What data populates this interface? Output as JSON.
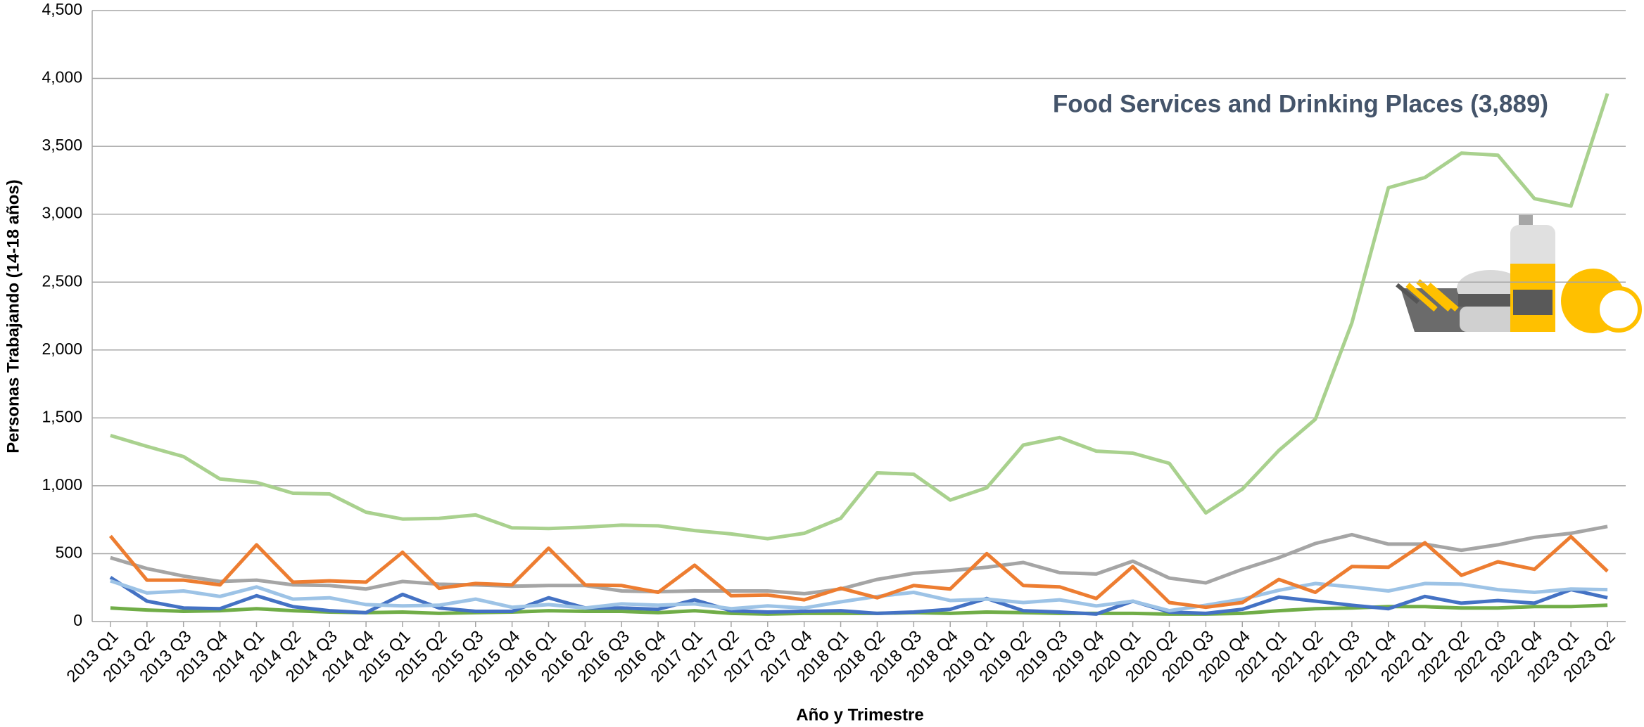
{
  "chart_data": {
    "type": "line",
    "annotation": "Food Services and Drinking Places (3,889)",
    "x_label": "Año y Trimestre",
    "y_label": "Personas Trabajando (14-18 años)",
    "categories": [
      "2013 Q1",
      "2013 Q2",
      "2013 Q3",
      "2013 Q4",
      "2014 Q1",
      "2014 Q2",
      "2014 Q3",
      "2014 Q4",
      "2015 Q1",
      "2015 Q2",
      "2015 Q3",
      "2015 Q4",
      "2016 Q1",
      "2016 Q2",
      "2016 Q3",
      "2016 Q4",
      "2017 Q1",
      "2017 Q2",
      "2017 Q3",
      "2017 Q4",
      "2018 Q1",
      "2018 Q2",
      "2018 Q3",
      "2018 Q4",
      "2019 Q1",
      "2019 Q2",
      "2019 Q3",
      "2019 Q4",
      "2020 Q1",
      "2020 Q2",
      "2020 Q3",
      "2020 Q4",
      "2021 Q1",
      "2021 Q2",
      "2021 Q3",
      "2021 Q4",
      "2022 Q1",
      "2022 Q2",
      "2022 Q3",
      "2022 Q4",
      "2023 Q1",
      "2023 Q2"
    ],
    "ylim": [
      0,
      4500
    ],
    "yticks": [
      0,
      500,
      {
        "value": 1000,
        "label": "1,000"
      },
      {
        "value": 1500,
        "label": "1,500"
      },
      {
        "value": 2000,
        "label": "2,000"
      },
      {
        "value": 2500,
        "label": "2,500"
      },
      {
        "value": 3000,
        "label": "3,000"
      },
      {
        "value": 3500,
        "label": "3,500"
      },
      {
        "value": 4000,
        "label": "4,000"
      },
      {
        "value": 4500,
        "label": "4,500"
      }
    ],
    "grid": true,
    "series": [
      {
        "color": "#70ad47",
        "values": [
          100,
          85,
          75,
          80,
          95,
          80,
          70,
          65,
          70,
          60,
          65,
          70,
          80,
          75,
          75,
          65,
          80,
          60,
          55,
          60,
          60,
          60,
          65,
          60,
          70,
          65,
          60,
          60,
          60,
          55,
          55,
          60,
          80,
          95,
          100,
          110,
          110,
          100,
          100,
          110,
          110,
          120
        ]
      },
      {
        "color": "#4472c4",
        "values": [
          325,
          150,
          100,
          95,
          190,
          110,
          80,
          65,
          200,
          100,
          75,
          75,
          175,
          100,
          100,
          90,
          160,
          80,
          70,
          75,
          80,
          60,
          70,
          90,
          170,
          80,
          70,
          55,
          150,
          70,
          60,
          90,
          180,
          150,
          120,
          95,
          185,
          135,
          155,
          135,
          235,
          175
        ]
      },
      {
        "color": "#9dc3e6",
        "values": [
          300,
          210,
          225,
          185,
          255,
          165,
          175,
          125,
          115,
          120,
          165,
          105,
          125,
          100,
          130,
          120,
          130,
          95,
          115,
          100,
          145,
          185,
          215,
          155,
          165,
          140,
          160,
          115,
          150,
          80,
          120,
          165,
          230,
          280,
          255,
          225,
          280,
          275,
          235,
          215,
          240,
          235
        ]
      },
      {
        "color": "#a5a5a5",
        "values": [
          470,
          390,
          335,
          295,
          305,
          270,
          265,
          240,
          295,
          275,
          270,
          260,
          265,
          265,
          225,
          220,
          225,
          225,
          225,
          205,
          240,
          310,
          355,
          375,
          400,
          435,
          360,
          350,
          445,
          320,
          285,
          385,
          470,
          575,
          640,
          570,
          570,
          525,
          565,
          620,
          650,
          700
        ]
      },
      {
        "color": "#ed7d31",
        "values": [
          630,
          305,
          305,
          270,
          565,
          290,
          300,
          290,
          510,
          245,
          280,
          270,
          540,
          270,
          265,
          215,
          415,
          190,
          195,
          160,
          245,
          175,
          265,
          240,
          500,
          265,
          255,
          170,
          405,
          140,
          105,
          140,
          310,
          215,
          405,
          400,
          580,
          340,
          440,
          385,
          625,
          370
        ]
      },
      {
        "color": "#a9d18e",
        "values": [
          1370,
          1290,
          1215,
          1050,
          1025,
          945,
          940,
          805,
          755,
          760,
          785,
          690,
          685,
          695,
          710,
          705,
          670,
          645,
          610,
          650,
          760,
          1095,
          1085,
          895,
          985,
          1300,
          1355,
          1255,
          1240,
          1165,
          800,
          975,
          1260,
          1490,
          2200,
          3195,
          3270,
          3450,
          3435,
          3115,
          3060,
          3889
        ]
      }
    ]
  }
}
